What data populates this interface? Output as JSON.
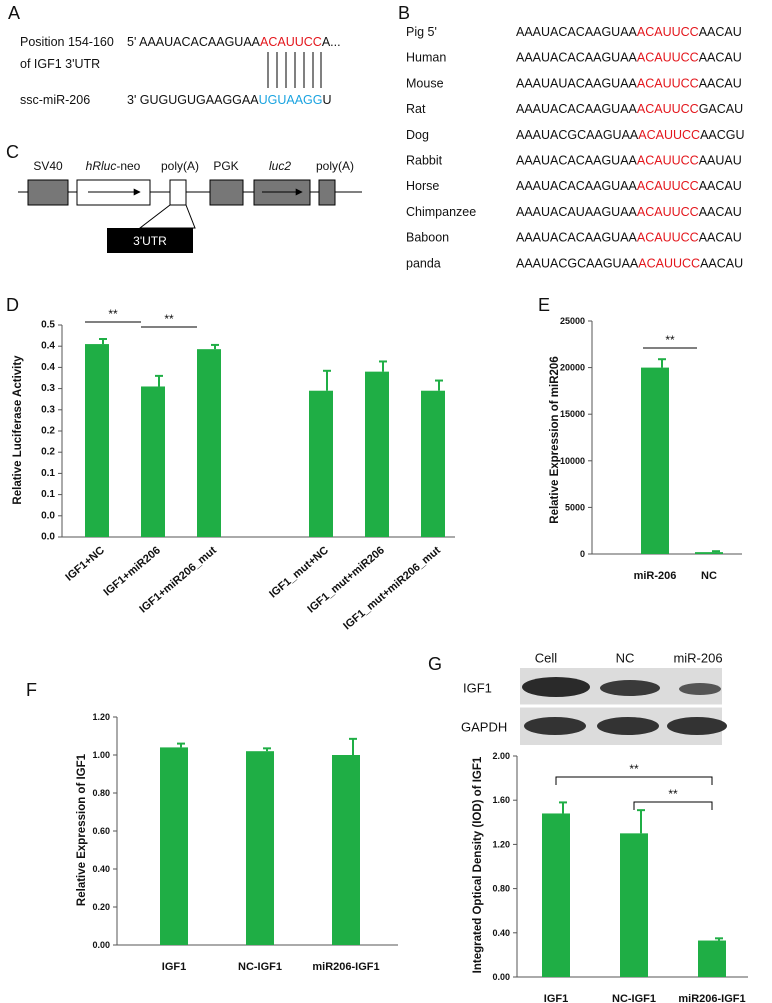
{
  "site": {
    "label": "A",
    "lines": [
      "Position 154-160",
      "of IGF1 3'UTR"
    ],
    "target": [
      "5' AAAUACACAAGUAA",
      "ACAUUCC",
      "A..."
    ],
    "mirna_name": "ssc-miR-206",
    "mirna": [
      "3' GUGUGUGAAGGAA",
      "UGUAAGG",
      "U"
    ]
  },
  "alignment": {
    "label": "B",
    "rows": [
      {
        "species": "Pig 5'",
        "seq": [
          "AAAUACACAAGUAA",
          "ACAUUCC",
          "AACAU"
        ]
      },
      {
        "species": "Human",
        "seq": [
          "AAAUACACAAGUAA",
          "ACAUUCC",
          "AACAU"
        ]
      },
      {
        "species": "Mouse",
        "seq": [
          "AAAUAUACAAGUAA",
          "ACAUUCC",
          "AACAU"
        ]
      },
      {
        "species": "Rat",
        "seq": [
          "AAAUACACAAGUAA",
          "ACAUUCC",
          "GACAU"
        ]
      },
      {
        "species": "Dog",
        "seq": [
          "AAAUACGCAAGUAA",
          "ACAUUCC",
          "AACGU"
        ]
      },
      {
        "species": "Rabbit",
        "seq": [
          "AAAUACACAAGUAA",
          "ACAUUCC",
          "AAUAU"
        ]
      },
      {
        "species": "Horse",
        "seq": [
          "AAAUACACAAGUAA",
          "ACAUUCC",
          "AACAU"
        ]
      },
      {
        "species": "Chimpanzee",
        "seq": [
          "AAAUACAUAAGUAA",
          "ACAUUCC",
          "AACAU"
        ]
      },
      {
        "species": "Baboon",
        "seq": [
          "AAAUACACAAGUAA",
          "ACAUUCC",
          "AACAU"
        ]
      },
      {
        "species": "panda",
        "seq": [
          "AAAUACGCAAGUAA",
          "ACAUUCC",
          "AACAU"
        ]
      }
    ]
  },
  "construct": {
    "label": "C",
    "sv40": "SV40",
    "hrluc": "hRluc",
    "neo": "-neo",
    "polya1": "poly(A)",
    "pgk": "PGK",
    "luc2": "luc2",
    "polya2": "poly(A)",
    "utr": "3'UTR"
  },
  "chart_data": [
    {
      "type": "bar",
      "label": "D",
      "y_label": "Relative Luciferase Activity",
      "categories": [
        "IGF1+NC",
        "IGF1+miR206",
        "IGF1+miR206_mut",
        null,
        "IGF1_mut+NC",
        "IGF1_mut+miR206",
        "IGF1_mut+miR206_mut"
      ],
      "values": [
        0.455,
        0.355,
        0.443,
        null,
        0.345,
        0.39,
        0.345
      ],
      "errors": [
        0.012,
        0.025,
        0.01,
        null,
        0.047,
        0.024,
        0.024
      ],
      "color": "#1fae45",
      "ylim": [
        0,
        0.5
      ],
      "yticks": [
        {
          "value": 0,
          "label": "0.0"
        },
        {
          "value": 0.05,
          "label": "0.0"
        },
        {
          "value": 0.1,
          "label": "0.1"
        },
        {
          "value": 0.15,
          "label": "0.1"
        },
        {
          "value": 0.2,
          "label": "0.2"
        },
        {
          "value": 0.25,
          "label": "0.2"
        },
        {
          "value": 0.3,
          "label": "0.3"
        },
        {
          "value": 0.35,
          "label": "0.3"
        },
        {
          "value": 0.4,
          "label": "0.4"
        },
        {
          "value": 0.45,
          "label": "0.4"
        },
        {
          "value": 0.5,
          "label": "0.5"
        }
      ],
      "significance": [
        "**",
        "**"
      ]
    },
    {
      "type": "bar",
      "label": "E",
      "y_label": "Relative Expression of miR206",
      "categories": [
        "miR-206",
        "NC"
      ],
      "values": [
        20000,
        200
      ],
      "errors": [
        900,
        100
      ],
      "color": "#1fae45",
      "ylim": [
        0,
        25000
      ],
      "yticks": [
        0,
        5000,
        10000,
        15000,
        20000,
        25000
      ],
      "significance": [
        "**"
      ]
    },
    {
      "type": "bar",
      "label": "F",
      "y_label": "Relative Expression of IGF1",
      "categories": [
        "IGF1",
        "NC-IGF1",
        "miR206-IGF1"
      ],
      "values": [
        1.04,
        1.02,
        1.0
      ],
      "errors": [
        0.02,
        0.015,
        0.085
      ],
      "color": "#1fae45",
      "ylim": [
        0,
        1.2
      ],
      "yticks": [
        {
          "value": 0,
          "label": "0.00"
        },
        {
          "value": 0.2,
          "label": "0.20"
        },
        {
          "value": 0.4,
          "label": "0.40"
        },
        {
          "value": 0.6,
          "label": "0.60"
        },
        {
          "value": 0.8,
          "label": "0.80"
        },
        {
          "value": 1.0,
          "label": "1.00"
        },
        {
          "value": 1.2,
          "label": "1.20"
        }
      ],
      "significance": []
    },
    {
      "type": "bar",
      "label": "G",
      "y_label": "Integrated Optical Density (IOD) of IGF1",
      "blot": {
        "lanes": [
          "Cell",
          "NC",
          "miR-206"
        ],
        "rows": [
          "IGF1",
          "GAPDH"
        ]
      },
      "categories": [
        "IGF1",
        "NC-IGF1",
        "miR206-IGF1"
      ],
      "values": [
        1.48,
        1.3,
        0.33
      ],
      "errors": [
        0.1,
        0.21,
        0.02
      ],
      "color": "#1fae45",
      "ylim": [
        0,
        2
      ],
      "yticks": [
        {
          "value": 0,
          "label": "0.00"
        },
        {
          "value": 0.4,
          "label": "0.40"
        },
        {
          "value": 0.8,
          "label": "0.80"
        },
        {
          "value": 1.2,
          "label": "1.20"
        },
        {
          "value": 1.6,
          "label": "1.60"
        },
        {
          "value": 2,
          "label": "2.00"
        }
      ],
      "significance": [
        "**",
        "**"
      ]
    }
  ]
}
